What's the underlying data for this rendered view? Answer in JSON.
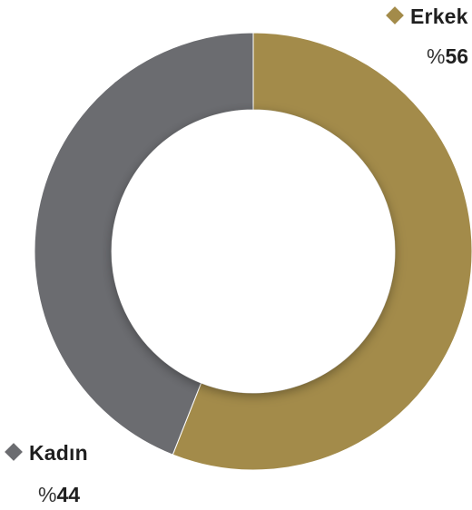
{
  "chart_data": {
    "type": "pie",
    "variant": "donut",
    "categories": [
      "Erkek",
      "Kadın"
    ],
    "values": [
      56,
      44
    ],
    "labels": [
      {
        "name": "Erkek",
        "percent_text": "56",
        "color": "#a38b4a"
      },
      {
        "name": "Kadın",
        "percent_text": "44",
        "color": "#6b6c70"
      }
    ],
    "percent_sign": "%",
    "start_angle_deg": 0,
    "direction": "clockwise",
    "title": "",
    "legend": "labels beside slices"
  },
  "colors": {
    "erkek": "#a38b4a",
    "kadin": "#6b6c70",
    "background": "#ffffff"
  }
}
